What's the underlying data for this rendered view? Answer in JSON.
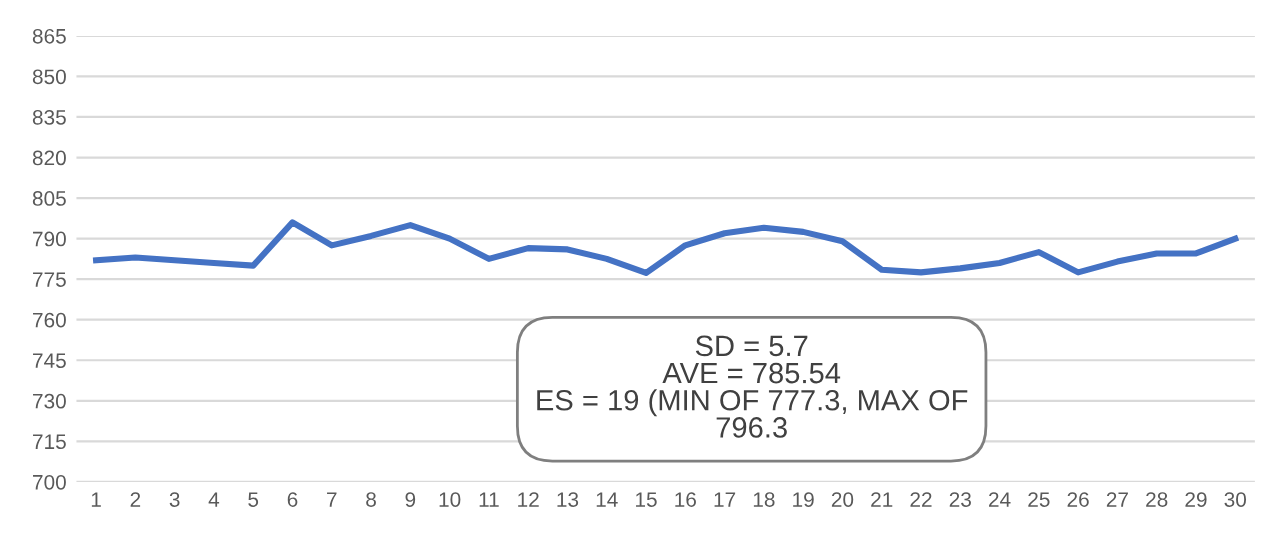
{
  "chart_data": {
    "type": "line",
    "categories": [
      "1",
      "2",
      "3",
      "4",
      "5",
      "6",
      "7",
      "8",
      "9",
      "10",
      "11",
      "12",
      "13",
      "14",
      "15",
      "16",
      "17",
      "18",
      "19",
      "20",
      "21",
      "22",
      "23",
      "24",
      "25",
      "26",
      "27",
      "28",
      "29",
      "30"
    ],
    "series": [
      {
        "color": "#4472c4",
        "values": [
          782,
          783,
          782,
          781,
          780,
          796,
          787.5,
          791,
          795,
          790,
          782.5,
          786.5,
          786,
          782.5,
          777.3,
          787.5,
          792,
          794,
          792.5,
          789,
          778.5,
          777.5,
          779,
          781,
          785,
          777.5,
          781.5,
          784.5,
          784.5,
          790
        ]
      }
    ],
    "ylim": [
      700,
      865
    ],
    "yticks": [
      700,
      715,
      730,
      745,
      760,
      775,
      790,
      805,
      820,
      835,
      850,
      865
    ],
    "grid": "y",
    "legend": false,
    "marker": "none",
    "line_style": "solid",
    "annotations": [
      "SD = 5.7\nAVE = 785.54\nES = 19 (MIN OF 777.3, MAX OF\n796.3"
    ]
  }
}
